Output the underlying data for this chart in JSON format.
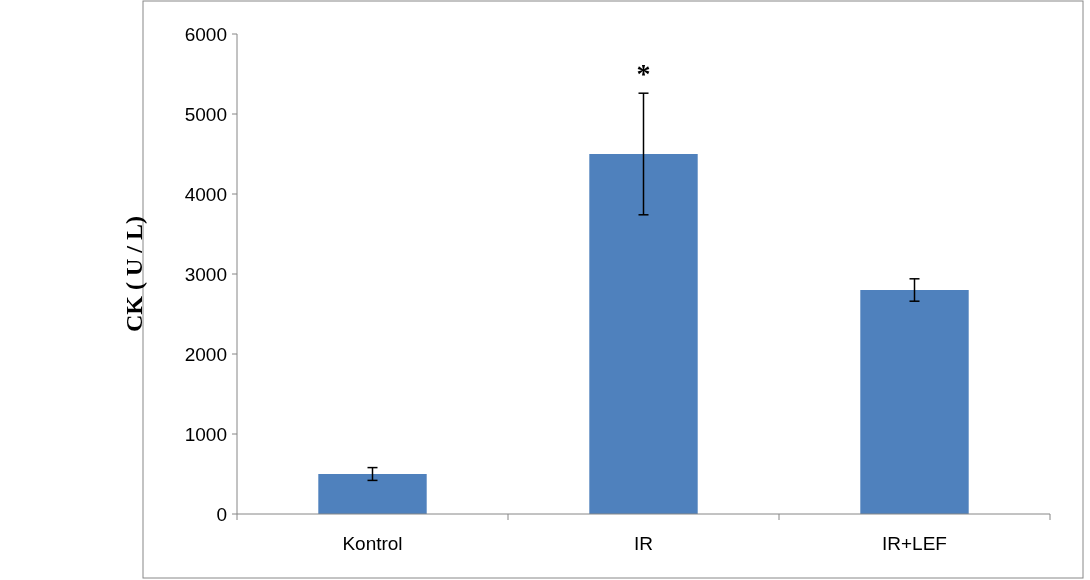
{
  "chart_data": {
    "type": "bar",
    "ylabel": "CK ( U / L)",
    "categories": [
      "Kontrol",
      "IR",
      "IR+LEF"
    ],
    "values": [
      500,
      4500,
      2800
    ],
    "color": "#4f81bd",
    "errors": [
      80,
      760,
      140
    ],
    "ylim": [
      0,
      6000
    ],
    "yticks": [
      0,
      1000,
      2000,
      3000,
      4000,
      5000,
      6000
    ],
    "grid": false,
    "annotations": [
      "*"
    ]
  }
}
